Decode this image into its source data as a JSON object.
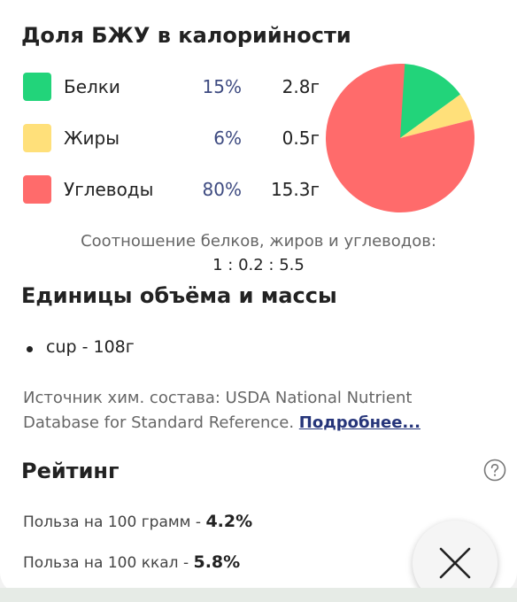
{
  "macros_section": {
    "title": "Доля БЖУ в калорийности",
    "items": [
      {
        "name": "Белки",
        "percent": "15%",
        "grams": "2.8г",
        "color": "#22d47a"
      },
      {
        "name": "Жиры",
        "percent": "6%",
        "grams": "0.5г",
        "color": "#ffe07a"
      },
      {
        "name": "Углеводы",
        "percent": "80%",
        "grams": "15.3г",
        "color": "#ff6b6b"
      }
    ],
    "ratio_caption": "Соотношение белков, жиров и углеводов:",
    "ratio_value": "1 : 0.2 : 5.5"
  },
  "chart_data": {
    "type": "pie",
    "categories": [
      "Белки",
      "Жиры",
      "Углеводы"
    ],
    "values": [
      15,
      6,
      80
    ],
    "colors": [
      "#22d47a",
      "#ffe07a",
      "#ff6b6b"
    ]
  },
  "units_section": {
    "title": "Единицы объёма и массы",
    "items": [
      "cup - 108г"
    ]
  },
  "source": {
    "text": "Источник хим. состава: USDA National Nutrient Database for Standard Reference.",
    "link": "Подробнее..."
  },
  "rating": {
    "title": "Рейтинг",
    "per_100g_label": "Польза на 100 грамм - ",
    "per_100g_value": "4.2%",
    "per_100kcal_label": "Польза на 100 ккал - ",
    "per_100kcal_value": "5.8%"
  },
  "icons": {
    "help": "help-circle-icon",
    "close": "close-icon"
  }
}
